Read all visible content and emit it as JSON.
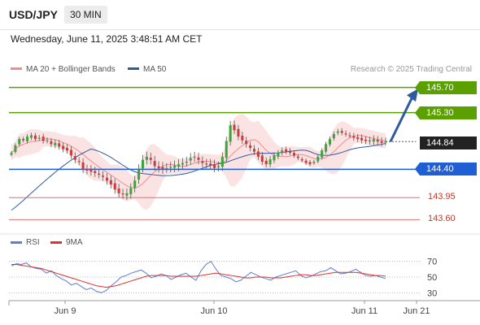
{
  "header": {
    "symbol": "USD/JPY",
    "timeframe": "30 MIN",
    "datetime": "Wednesday, June 11, 2025 3:48:51 AM CET"
  },
  "legend": {
    "items": [
      {
        "label": "MA 20 + Bollinger Bands",
        "color": "#f08c8c"
      },
      {
        "label": "MA 50",
        "color": "#2f5aa0"
      }
    ],
    "credit": "Research © 2025 Trading Central"
  },
  "chart_data": {
    "type": "candlestick",
    "ylim": [
      143.45,
      145.85
    ],
    "x_ticks": [
      "Jun 9",
      "Jun 10",
      "Jun 11",
      "Jun 21"
    ],
    "current_price": "144.84",
    "levels": [
      {
        "value": 145.7,
        "label": "145.70",
        "style": "resistance",
        "color": "#5aa000"
      },
      {
        "value": 145.3,
        "label": "145.30",
        "style": "resistance",
        "color": "#5aa000"
      },
      {
        "value": 144.4,
        "label": "144.40",
        "style": "pivot",
        "color": "#1f5fd6"
      },
      {
        "value": 143.95,
        "label": "143.95",
        "style": "support",
        "color": "#e07070"
      },
      {
        "value": 143.6,
        "label": "143.60",
        "style": "support",
        "color": "#e07070"
      }
    ],
    "closes": [
      144.66,
      144.78,
      144.88,
      144.86,
      144.92,
      144.94,
      144.88,
      144.9,
      144.85,
      144.86,
      144.8,
      144.82,
      144.76,
      144.72,
      144.7,
      144.62,
      144.55,
      144.52,
      144.4,
      144.38,
      144.36,
      144.34,
      144.32,
      144.28,
      144.22,
      144.16,
      144.08,
      144.02,
      144.0,
      144.02,
      144.1,
      144.22,
      144.4,
      144.55,
      144.6,
      144.55,
      144.45,
      144.42,
      144.4,
      144.42,
      144.44,
      144.46,
      144.48,
      144.5,
      144.52,
      144.58,
      144.6,
      144.55,
      144.5,
      144.48,
      144.46,
      144.42,
      144.45,
      144.6,
      144.85,
      145.1,
      145.02,
      144.92,
      144.86,
      144.8,
      144.74,
      144.68,
      144.6,
      144.52,
      144.48,
      144.56,
      144.62,
      144.66,
      144.7,
      144.68,
      144.66,
      144.62,
      144.58,
      144.54,
      144.5,
      144.48,
      144.52,
      144.6,
      144.7,
      144.8,
      144.88,
      144.96,
      145.0,
      144.98,
      144.96,
      144.94,
      144.9,
      144.88,
      144.86,
      144.85,
      144.86,
      144.88,
      144.84,
      144.82,
      144.84
    ],
    "rsi": {
      "ticks": [
        70,
        50,
        30
      ],
      "series": [
        {
          "name": "RSI",
          "color": "#5b7fd4",
          "values": [
            64,
            67,
            66,
            68,
            63,
            61,
            60,
            55,
            58,
            52,
            48,
            45,
            40,
            42,
            38,
            34,
            36,
            32,
            30,
            33,
            39,
            44,
            50,
            52,
            55,
            57,
            59,
            55,
            49,
            51,
            54,
            52,
            47,
            50,
            53,
            55,
            50,
            46,
            58,
            66,
            70,
            60,
            52,
            50,
            48,
            44,
            46,
            51,
            56,
            53,
            50,
            48,
            46,
            50,
            52,
            54,
            56,
            58,
            52,
            49,
            51,
            54,
            57,
            58,
            62,
            58,
            54,
            55,
            57,
            60,
            56,
            52,
            51,
            52,
            50,
            48
          ]
        },
        {
          "name": "9MA",
          "color": "#e03030",
          "values": [
            66,
            66,
            65,
            64,
            63,
            62,
            61,
            59,
            57,
            55,
            53,
            51,
            49,
            47,
            45,
            43,
            41,
            39,
            38,
            37,
            38,
            39,
            41,
            43,
            45,
            47,
            49,
            51,
            52,
            52,
            52,
            52,
            51,
            51,
            51,
            51,
            51,
            51,
            52,
            53,
            54,
            55,
            54,
            53,
            52,
            51,
            50,
            49,
            49,
            50,
            50,
            50,
            49,
            49,
            49,
            50,
            51,
            52,
            53,
            53,
            52,
            52,
            53,
            54,
            55,
            56,
            56,
            56,
            56,
            56,
            55,
            54,
            53,
            52,
            52,
            51
          ]
        }
      ]
    }
  }
}
